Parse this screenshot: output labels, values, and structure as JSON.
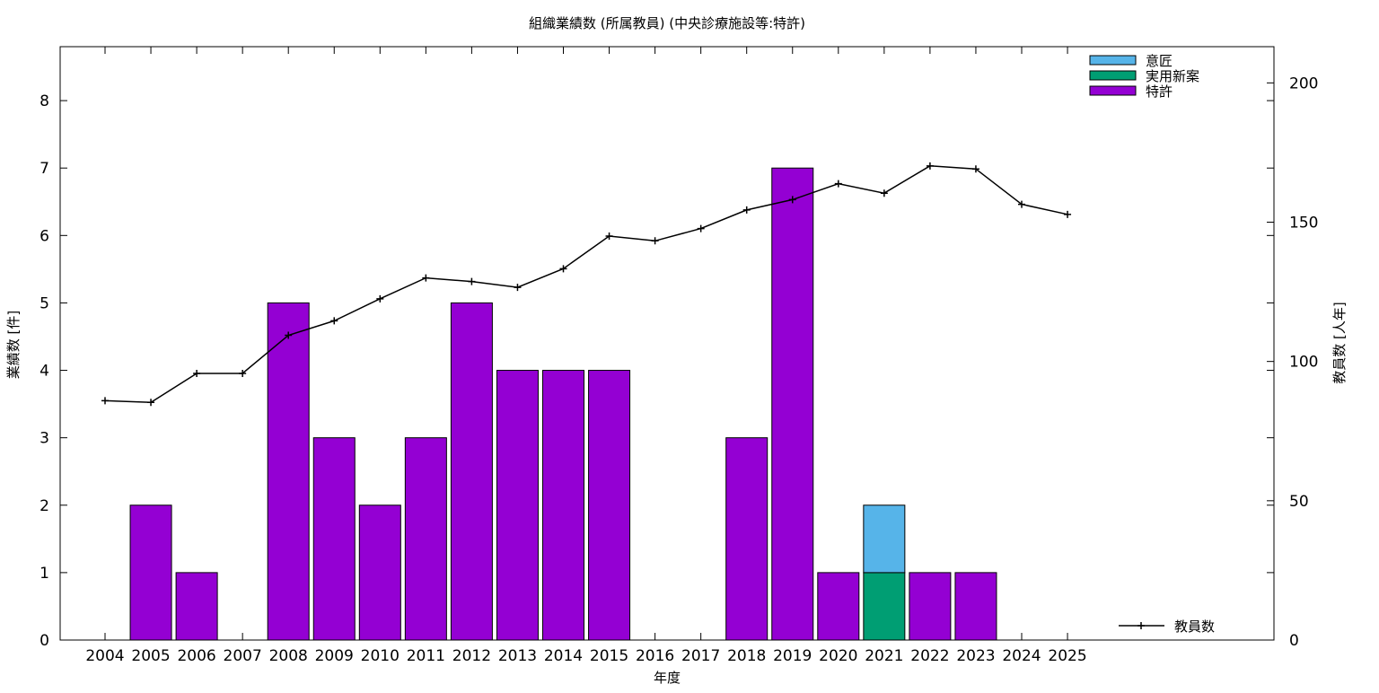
{
  "chart_data": {
    "type": "bar",
    "title": "組織業績数 (所属教員) (中央診療施設等:特許)",
    "xlabel": "年度",
    "ylabel": "業績数 [件]",
    "y2label": "教員数 [人年]",
    "categories": [
      "2004",
      "2005",
      "2006",
      "2007",
      "2008",
      "2009",
      "2010",
      "2011",
      "2012",
      "2013",
      "2014",
      "2015",
      "2016",
      "2017",
      "2018",
      "2019",
      "2020",
      "2021",
      "2022",
      "2023",
      "2024",
      "2025"
    ],
    "stacked": true,
    "ylim": [
      0,
      8.8
    ],
    "yticks": [
      0,
      1,
      2,
      3,
      4,
      5,
      6,
      7,
      8
    ],
    "y2lim": [
      0,
      213
    ],
    "y2ticks": [
      0,
      50,
      100,
      150,
      200
    ],
    "series": [
      {
        "name": "特許",
        "color": "#9400d3",
        "values": [
          0,
          2,
          1,
          0,
          5,
          3,
          2,
          3,
          5,
          4,
          4,
          4,
          0,
          0,
          3,
          7,
          1,
          0,
          1,
          1,
          0,
          0
        ]
      },
      {
        "name": "実用新案",
        "color": "#009e73",
        "values": [
          0,
          0,
          0,
          0,
          0,
          0,
          0,
          0,
          0,
          0,
          0,
          0,
          0,
          0,
          0,
          0,
          0,
          1,
          0,
          0,
          0,
          0
        ]
      },
      {
        "name": "意匠",
        "color": "#56b4e9",
        "values": [
          0,
          0,
          0,
          0,
          0,
          0,
          0,
          0,
          0,
          0,
          0,
          0,
          0,
          0,
          0,
          0,
          0,
          1,
          0,
          0,
          0,
          0
        ]
      }
    ],
    "line_series": {
      "name": "教員数",
      "axis": "y2",
      "color": "#000000",
      "values": [
        85.9,
        85.3,
        95.7,
        95.7,
        109.4,
        114.6,
        122.5,
        130.0,
        128.7,
        126.6,
        133.3,
        145.0,
        143.3,
        147.7,
        154.4,
        158.1,
        163.8,
        160.4,
        170.2,
        169.1,
        156.4,
        152.8
      ]
    },
    "legend_position": "top-right",
    "line_legend_position": "bottom-right",
    "grid": false
  }
}
